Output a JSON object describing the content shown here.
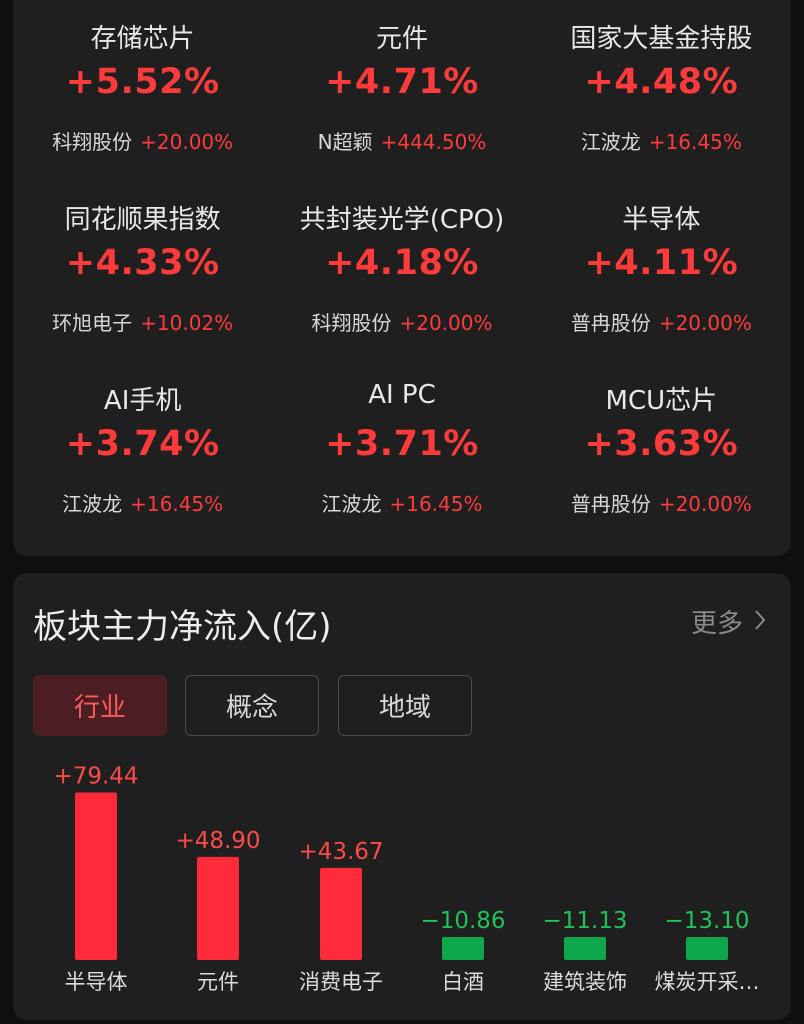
{
  "sectors": [
    {
      "name": "存储芯片",
      "pct": "+5.52%",
      "lead_stock": "科翔股份",
      "lead_change": "+20.00%"
    },
    {
      "name": "元件",
      "pct": "+4.71%",
      "lead_stock": "N超颖",
      "lead_change": "+444.50%"
    },
    {
      "name": "国家大基金持股",
      "pct": "+4.48%",
      "lead_stock": "江波龙",
      "lead_change": "+16.45%"
    },
    {
      "name": "同花顺果指数",
      "pct": "+4.33%",
      "lead_stock": "环旭电子",
      "lead_change": "+10.02%"
    },
    {
      "name": "共封装光学(CPO)",
      "pct": "+4.18%",
      "lead_stock": "科翔股份",
      "lead_change": "+20.00%"
    },
    {
      "name": "半导体",
      "pct": "+4.11%",
      "lead_stock": "普冉股份",
      "lead_change": "+20.00%"
    },
    {
      "name": "AI手机",
      "pct": "+3.74%",
      "lead_stock": "江波龙",
      "lead_change": "+16.45%"
    },
    {
      "name": "AI PC",
      "pct": "+3.71%",
      "lead_stock": "江波龙",
      "lead_change": "+16.45%"
    },
    {
      "name": "MCU芯片",
      "pct": "+3.63%",
      "lead_stock": "普冉股份",
      "lead_change": "+20.00%"
    }
  ],
  "flow": {
    "title": "板块主力净流入(亿)",
    "more_label": "更多",
    "tabs": [
      {
        "label": "行业",
        "active": true
      },
      {
        "label": "概念",
        "active": false
      },
      {
        "label": "地域",
        "active": false
      }
    ]
  },
  "colors": {
    "up": "#ff2b3a",
    "down": "#0ea84a",
    "label_up": "#ff4a4a",
    "label_down": "#20c15a"
  },
  "chart_data": {
    "type": "bar",
    "categories": [
      "半导体",
      "元件",
      "消费电子",
      "白酒",
      "建筑装饰",
      "煤炭开采…"
    ],
    "values": [
      79.44,
      48.9,
      43.67,
      -10.86,
      -11.13,
      -13.1
    ],
    "value_labels": [
      "+79.44",
      "+48.90",
      "+43.67",
      "−10.86",
      "−11.13",
      "−13.10"
    ],
    "ylabel": "",
    "grid": false
  }
}
